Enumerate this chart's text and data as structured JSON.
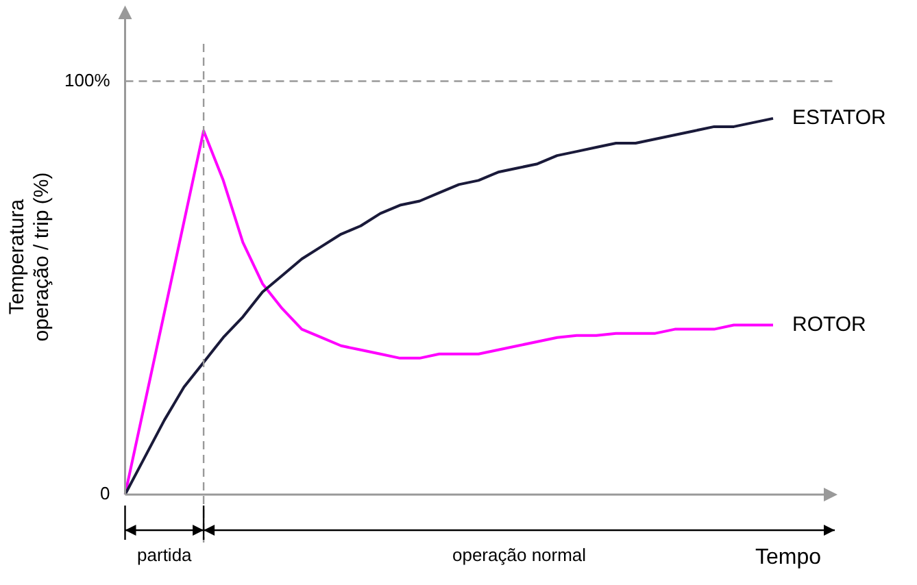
{
  "chart_data": {
    "type": "line",
    "xlabel": "Tempo",
    "ylabel": "Temperatura\noperação / trip (%)",
    "categories": [
      null,
      null,
      null,
      null,
      null,
      null,
      null,
      null,
      null,
      null,
      null,
      null,
      null,
      null,
      null,
      null,
      null,
      null,
      null,
      null,
      null,
      null,
      null,
      null,
      null,
      null,
      null,
      null,
      null,
      null,
      null,
      null,
      null,
      null
    ],
    "series": [
      {
        "name": "ESTATOR",
        "color": "#1a1a3a",
        "values": [
          0,
          9,
          18,
          26,
          32,
          38,
          43,
          49,
          53,
          57,
          60,
          63,
          65,
          68,
          70,
          71,
          73,
          75,
          76,
          78,
          79,
          80,
          82,
          83,
          84,
          85,
          85,
          86,
          87,
          88,
          89,
          89,
          90,
          91
        ]
      },
      {
        "name": "ROTOR",
        "color": "#ff00ff",
        "values": [
          0,
          22,
          44,
          66,
          88,
          76,
          61,
          51,
          45,
          40,
          38,
          36,
          35,
          34,
          33,
          33,
          34,
          34,
          34,
          35,
          36,
          37,
          38,
          38.5,
          38.5,
          39,
          39,
          39,
          40,
          40,
          40,
          41,
          41,
          41
        ]
      }
    ],
    "ylim": [
      0,
      115
    ],
    "yticks": [
      {
        "value": 0,
        "label": "0"
      },
      {
        "value": 100,
        "label": "100%"
      }
    ],
    "ref_lines": [
      {
        "axis": "y",
        "value": 100,
        "color": "#999999",
        "line_style": "dashed"
      }
    ],
    "annotations": [
      "partida",
      "operação normal"
    ],
    "legend": false,
    "grid": false,
    "marker": "none",
    "line_style": "solid",
    "tick_labels": "y"
  }
}
